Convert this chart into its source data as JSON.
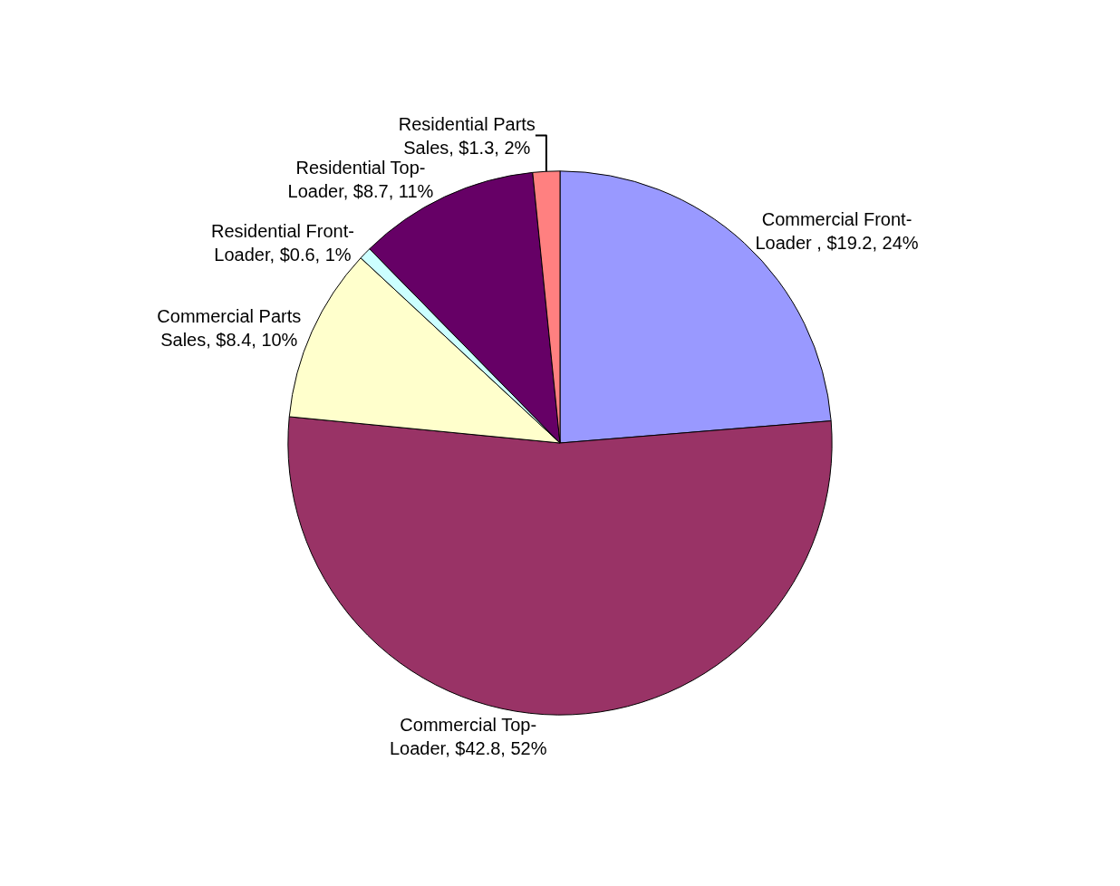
{
  "chart_data": {
    "type": "pie",
    "categories": [
      "Commercial Front-Loader ",
      "Commercial Top-Loader",
      "Commercial Parts Sales",
      "Residential Front-Loader",
      "Residential Top-Loader",
      "Residential Parts Sales"
    ],
    "values": [
      19.2,
      42.8,
      8.4,
      0.6,
      8.7,
      1.3
    ],
    "value_labels": [
      "$19.2, 24%",
      "$42.8, 52%",
      "$8.4, 10%",
      "$0.6, 1%",
      "$8.7, 11%",
      "$1.3, 2%"
    ],
    "colors": [
      "#9999ff",
      "#993366",
      "#ffffcc",
      "#ccffff",
      "#660066",
      "#ff8080"
    ],
    "legend": false
  }
}
